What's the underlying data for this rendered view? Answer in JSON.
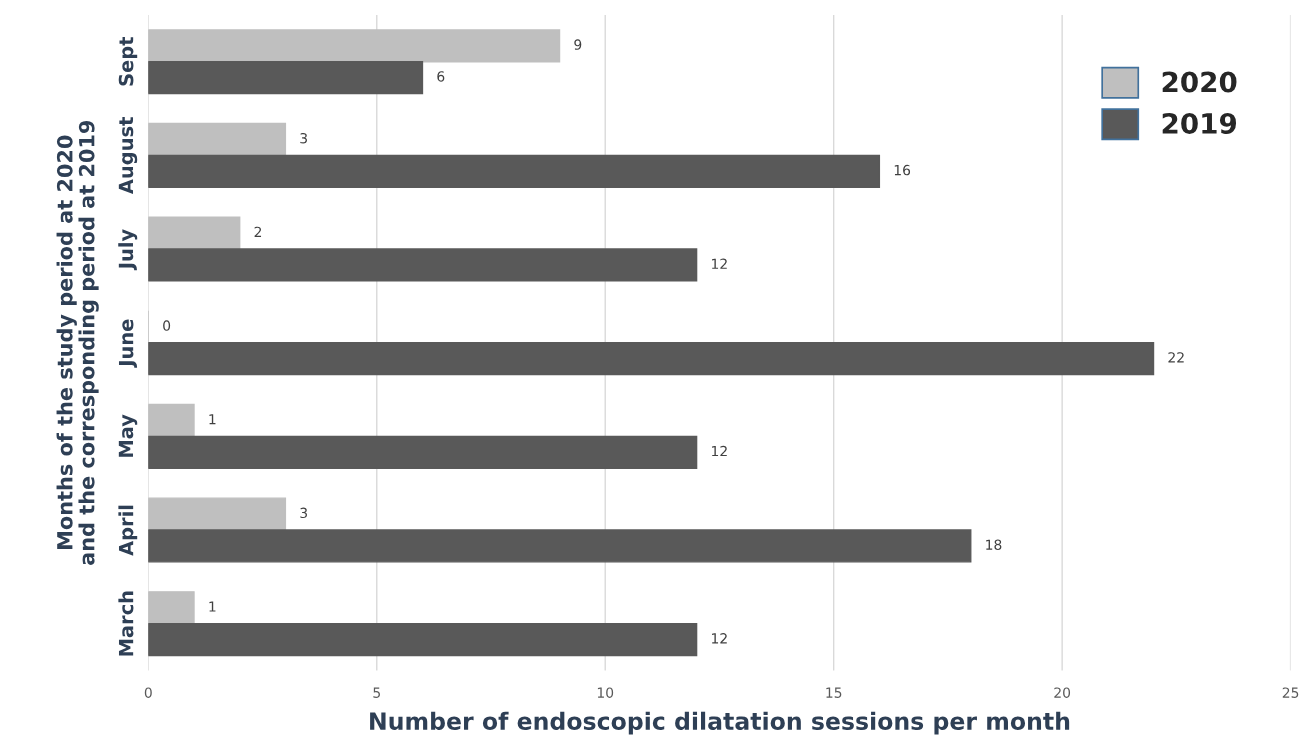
{
  "chart_data": {
    "type": "bar",
    "orientation": "horizontal",
    "xlabel": "Number of endoscopic dilatation sessions per month",
    "ylabel": "Months of the study period at 2020\nand the corresponding period at 2019",
    "categories": [
      "Sept",
      "August",
      "July",
      "June",
      "May",
      "April",
      "March"
    ],
    "series": [
      {
        "name": "2020",
        "color": "#bfbfbf",
        "values": [
          9,
          3,
          2,
          0,
          1,
          3,
          1
        ]
      },
      {
        "name": "2019",
        "color": "#595959",
        "values": [
          6,
          16,
          12,
          22,
          12,
          18,
          12
        ]
      }
    ],
    "xlim": [
      0,
      25
    ],
    "xticks": [
      0,
      5,
      10,
      15,
      20,
      25
    ],
    "grid": "x",
    "legend": "top right",
    "data_labels": true
  }
}
